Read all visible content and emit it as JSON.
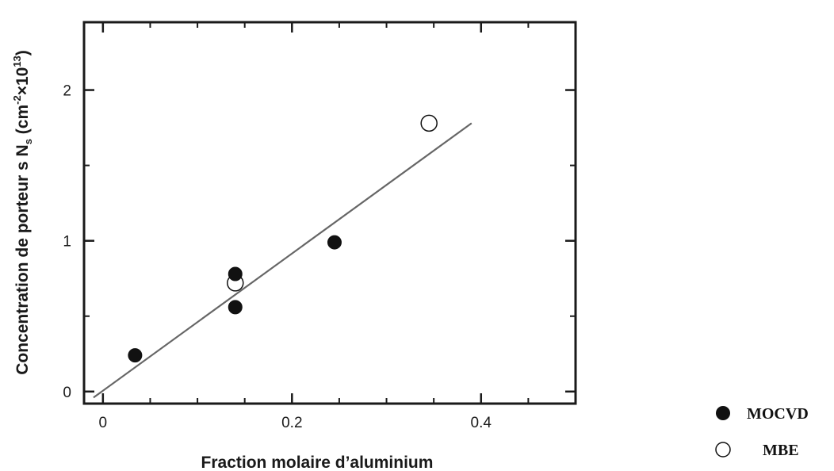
{
  "chart_data": {
    "type": "scatter",
    "xlabel": "Fraction molaire d’aluminium",
    "ylabel_prefix": "Concentration de porteur s N",
    "ylabel_sub": "s",
    "ylabel_unit_open": " (cm",
    "ylabel_exp1": "-2",
    "ylabel_unit_mid": "×10",
    "ylabel_exp2": "13",
    "ylabel_unit_close": ")",
    "xlim": [
      -0.02,
      0.5
    ],
    "ylim": [
      -0.08,
      2.45
    ],
    "xticks": [
      {
        "value": 0,
        "label": "0"
      },
      {
        "value": 0.2,
        "label": "0.2"
      },
      {
        "value": 0.4,
        "label": "0.4"
      }
    ],
    "yticks": [
      {
        "value": 0,
        "label": "0"
      },
      {
        "value": 1,
        "label": "1"
      },
      {
        "value": 2,
        "label": "2"
      }
    ],
    "minor_x_step": 0.05,
    "minor_y_step": 0.5,
    "grid": false,
    "legend_position": "outside-bottom-right",
    "series": [
      {
        "name": "MOCVD",
        "marker": "filled-circle",
        "color": "#111111",
        "points": [
          {
            "x": 0.034,
            "y": 0.24
          },
          {
            "x": 0.14,
            "y": 0.78
          },
          {
            "x": 0.14,
            "y": 0.56
          },
          {
            "x": 0.245,
            "y": 0.99
          }
        ]
      },
      {
        "name": "MBE",
        "marker": "open-circle",
        "color": "#111111",
        "points": [
          {
            "x": 0.14,
            "y": 0.72
          },
          {
            "x": 0.345,
            "y": 1.78
          }
        ]
      }
    ],
    "fit_line": {
      "x": [
        -0.01,
        0.39
      ],
      "y": [
        -0.04,
        1.78
      ],
      "color": "#666666"
    }
  }
}
